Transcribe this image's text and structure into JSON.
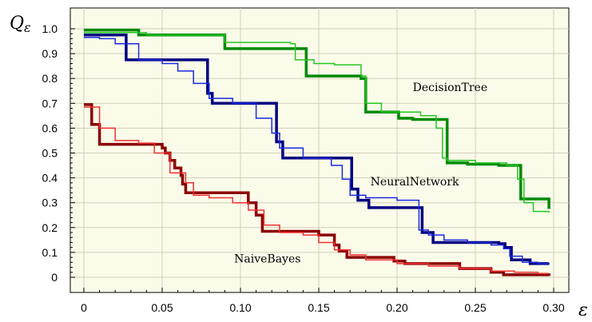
{
  "chart_data": {
    "type": "line",
    "step": true,
    "xlabel": "ε",
    "ylabel": "Qε",
    "ylabel_main": "Q",
    "ylabel_sub": "ε",
    "xlim": [
      0,
      0.3
    ],
    "ylim": [
      0,
      1.0
    ],
    "grid": true,
    "x_ticks": [
      0,
      0.05,
      0.1,
      0.15,
      0.2,
      0.25,
      0.3
    ],
    "x_tick_labels": [
      "0",
      "0.05",
      "0.10",
      "0.15",
      "0.20",
      "0.25",
      "0.30"
    ],
    "y_ticks": [
      0,
      0.1,
      0.2,
      0.3,
      0.4,
      0.5,
      0.6,
      0.7,
      0.8,
      0.9,
      1.0
    ],
    "y_tick_labels": [
      "0",
      "0.1",
      "0.2",
      "0.3",
      "0.4",
      "0.5",
      "0.6",
      "0.7",
      "0.8",
      "0.9",
      "1.0"
    ],
    "annotations": [
      {
        "text": "DecisionTree",
        "x": 0.21,
        "y": 0.75
      },
      {
        "text": "NeuralNetwork",
        "x": 0.183,
        "y": 0.37
      },
      {
        "text": "NaiveBayes",
        "x": 0.096,
        "y": 0.06
      }
    ],
    "series": [
      {
        "color": "#008a00",
        "width": 3.5,
        "x": [
          0,
          0.035,
          0.072,
          0.09,
          0.132,
          0.142,
          0.165,
          0.177,
          0.18,
          0.201,
          0.21,
          0.226,
          0.232,
          0.245,
          0.265,
          0.275,
          0.279,
          0.297
        ],
        "y": [
          0.995,
          0.975,
          0.975,
          0.92,
          0.92,
          0.81,
          0.81,
          0.8,
          0.665,
          0.64,
          0.635,
          0.635,
          0.46,
          0.455,
          0.45,
          0.45,
          0.315,
          0.275
        ]
      },
      {
        "color": "#22c722",
        "width": 1.5,
        "x": [
          0,
          0.02,
          0.04,
          0.08,
          0.09,
          0.132,
          0.135,
          0.147,
          0.16,
          0.177,
          0.18,
          0.19,
          0.215,
          0.225,
          0.229,
          0.232,
          0.25,
          0.27,
          0.277,
          0.281,
          0.287,
          0.297
        ],
        "y": [
          0.985,
          0.985,
          0.975,
          0.975,
          0.945,
          0.94,
          0.875,
          0.86,
          0.855,
          0.81,
          0.7,
          0.665,
          0.65,
          0.6,
          0.48,
          0.47,
          0.46,
          0.45,
          0.395,
          0.3,
          0.265,
          0.26
        ]
      },
      {
        "color": "#000080",
        "width": 3.5,
        "x": [
          0,
          0.02,
          0.027,
          0.074,
          0.079,
          0.082,
          0.12,
          0.123,
          0.127,
          0.168,
          0.171,
          0.175,
          0.182,
          0.21,
          0.216,
          0.223,
          0.252,
          0.265,
          0.269,
          0.273,
          0.285,
          0.297
        ],
        "y": [
          0.975,
          0.975,
          0.875,
          0.875,
          0.74,
          0.7,
          0.7,
          0.545,
          0.48,
          0.48,
          0.355,
          0.31,
          0.28,
          0.28,
          0.18,
          0.14,
          0.14,
          0.135,
          0.12,
          0.07,
          0.055,
          0.055
        ]
      },
      {
        "color": "#1a2be0",
        "width": 1.5,
        "x": [
          0,
          0.01,
          0.02,
          0.035,
          0.05,
          0.06,
          0.07,
          0.08,
          0.095,
          0.11,
          0.12,
          0.125,
          0.14,
          0.158,
          0.165,
          0.17,
          0.18,
          0.2,
          0.214,
          0.22,
          0.23,
          0.245,
          0.26,
          0.268,
          0.272,
          0.28,
          0.29,
          0.297
        ],
        "y": [
          0.965,
          0.96,
          0.94,
          0.875,
          0.86,
          0.83,
          0.78,
          0.72,
          0.7,
          0.64,
          0.58,
          0.52,
          0.48,
          0.45,
          0.395,
          0.33,
          0.32,
          0.31,
          0.19,
          0.17,
          0.15,
          0.14,
          0.13,
          0.115,
          0.085,
          0.06,
          0.055,
          0.05
        ]
      },
      {
        "color": "#8b0000",
        "width": 3.5,
        "x": [
          0,
          0.005,
          0.01,
          0.046,
          0.05,
          0.052,
          0.055,
          0.058,
          0.062,
          0.063,
          0.065,
          0.095,
          0.105,
          0.11,
          0.114,
          0.142,
          0.15,
          0.16,
          0.163,
          0.168,
          0.198,
          0.205,
          0.24,
          0.26,
          0.268,
          0.297
        ],
        "y": [
          0.695,
          0.615,
          0.535,
          0.535,
          0.52,
          0.5,
          0.47,
          0.44,
          0.41,
          0.375,
          0.34,
          0.34,
          0.3,
          0.25,
          0.185,
          0.185,
          0.17,
          0.13,
          0.105,
          0.08,
          0.065,
          0.055,
          0.035,
          0.02,
          0.01,
          0.005
        ]
      },
      {
        "color": "#f03030",
        "width": 1.5,
        "x": [
          0,
          0.01,
          0.02,
          0.035,
          0.045,
          0.055,
          0.065,
          0.07,
          0.08,
          0.095,
          0.105,
          0.115,
          0.125,
          0.14,
          0.15,
          0.16,
          0.17,
          0.18,
          0.2,
          0.22,
          0.24,
          0.26,
          0.275,
          0.29,
          0.297
        ],
        "y": [
          0.685,
          0.6,
          0.55,
          0.54,
          0.5,
          0.42,
          0.38,
          0.33,
          0.32,
          0.3,
          0.27,
          0.21,
          0.18,
          0.17,
          0.14,
          0.11,
          0.09,
          0.07,
          0.055,
          0.045,
          0.035,
          0.025,
          0.02,
          0.015,
          0.015
        ]
      }
    ]
  }
}
